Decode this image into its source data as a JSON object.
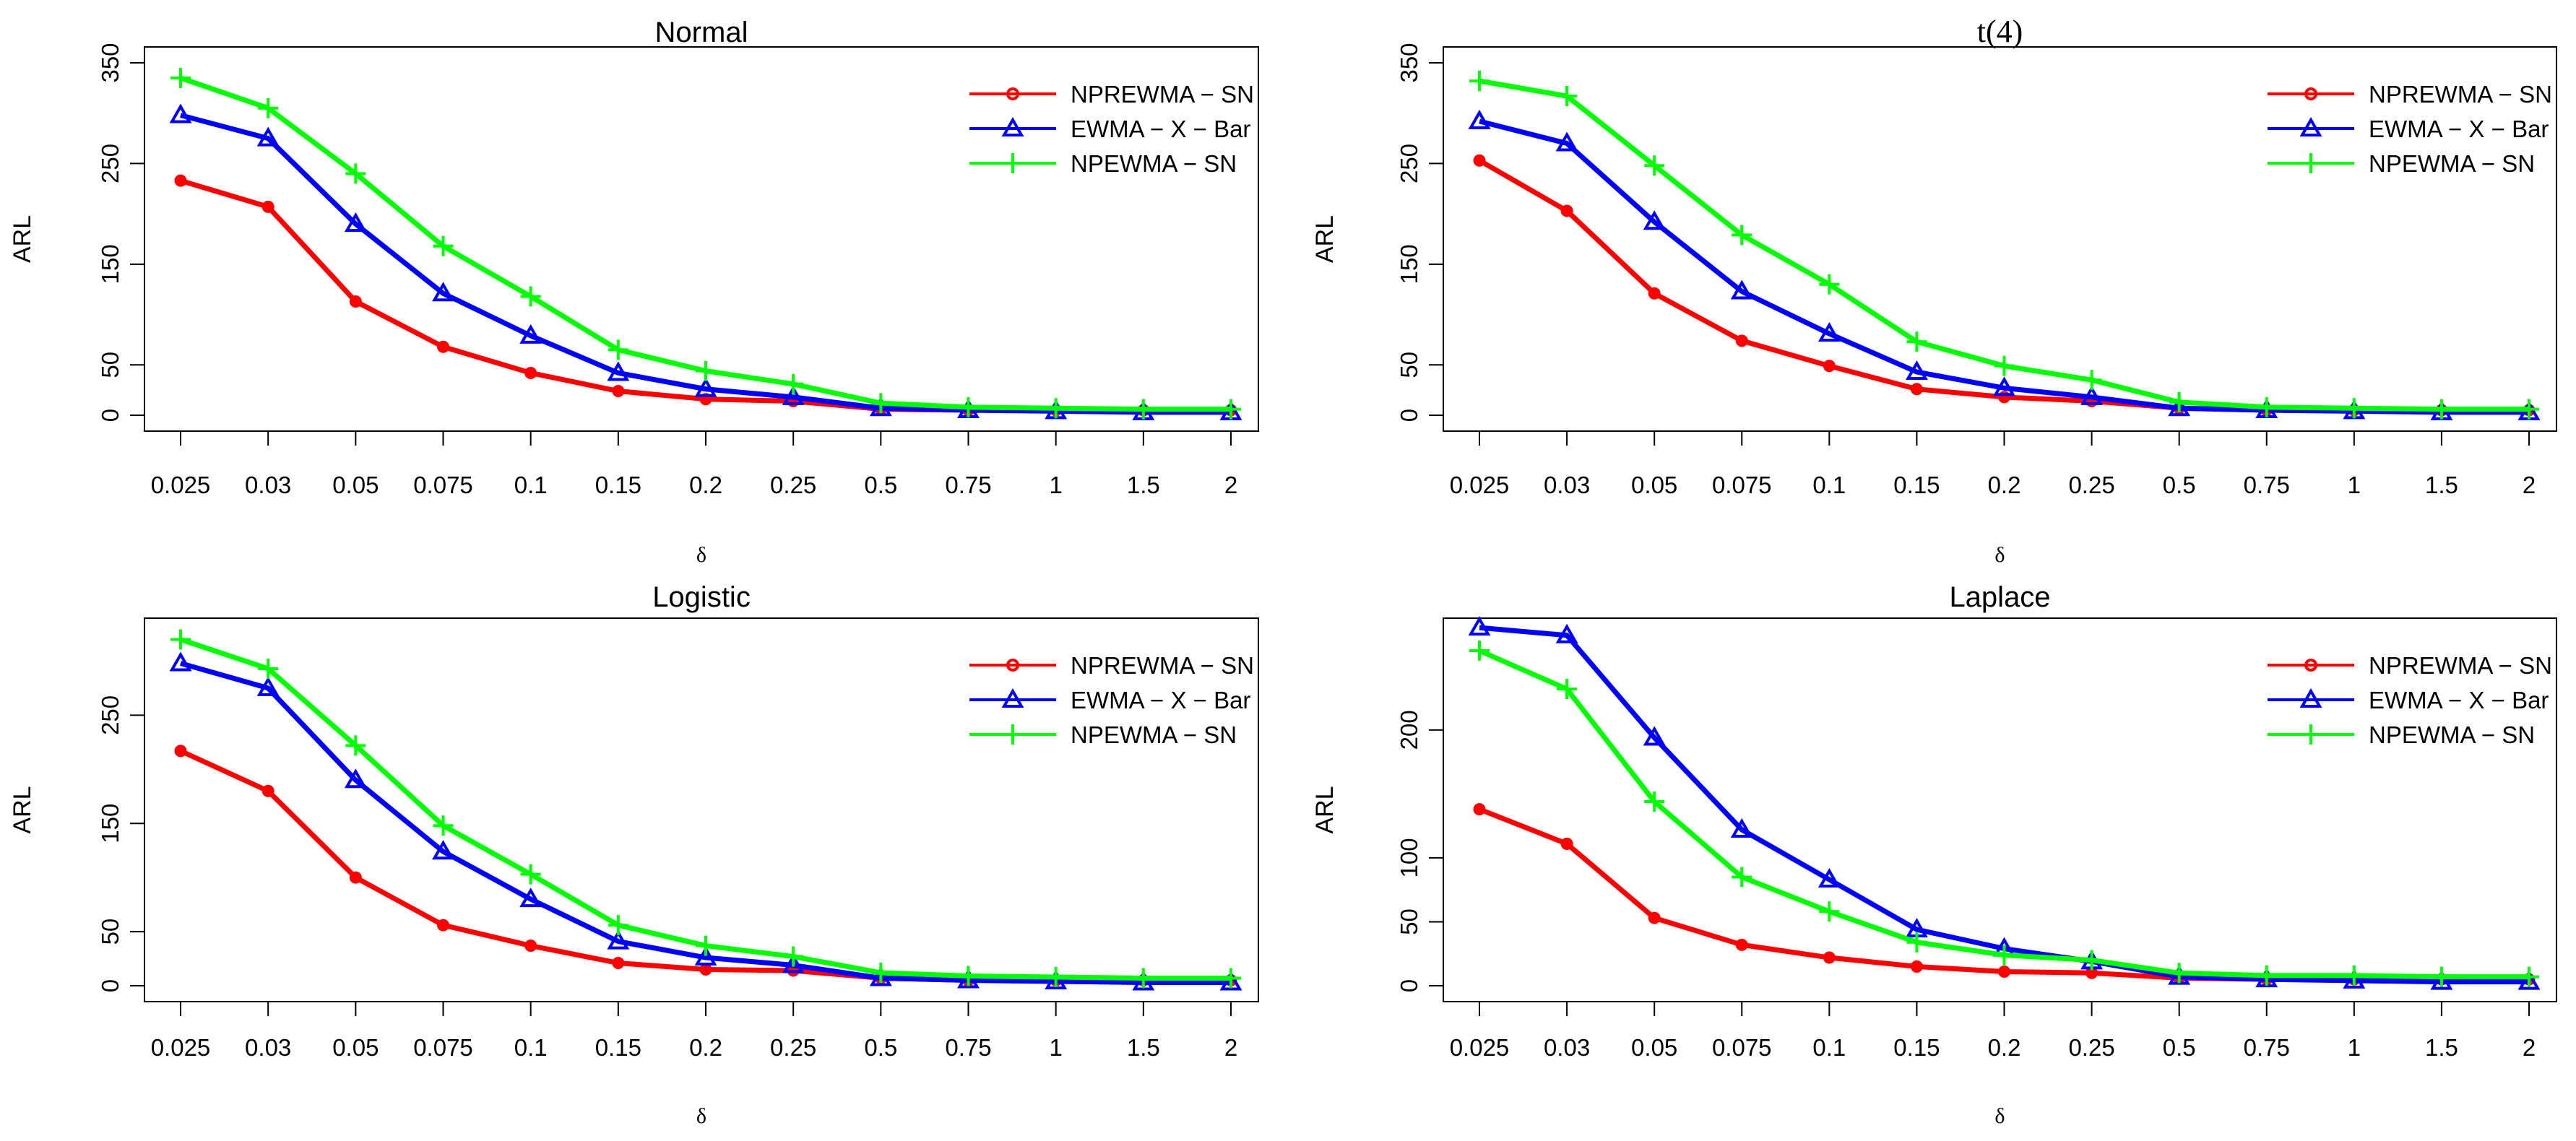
{
  "colors": {
    "NPREWMA-SN": "#ff0000",
    "EWMA-X-Bar": "#0000ff",
    "NPEWMA-SN": "#00ff00"
  },
  "chart_data": [
    {
      "type": "line",
      "title": "Normal",
      "xlabel": "δ",
      "ylabel": "ARL",
      "categories": [
        "0.025",
        "0.03",
        "0.05",
        "0.075",
        "0.1",
        "0.15",
        "0.2",
        "0.25",
        "0.5",
        "0.75",
        "1",
        "1.5",
        "2"
      ],
      "yticks": [
        0,
        50,
        150,
        250,
        350
      ],
      "ylim": [
        0,
        350
      ],
      "legend_position": "top-right",
      "series": [
        {
          "name": "NPREWMA − SN",
          "key": "NPREWMA-SN",
          "marker": "circle",
          "values": [
            233,
            207,
            113,
            68,
            42,
            24,
            16,
            14,
            6,
            5,
            5,
            5,
            5
          ]
        },
        {
          "name": "EWMA − X − Bar",
          "key": "EWMA-X-Bar",
          "marker": "triangle",
          "values": [
            298,
            275,
            190,
            121,
            79,
            42,
            26,
            18,
            7,
            5,
            4,
            3,
            3
          ]
        },
        {
          "name": "NPEWMA − SN",
          "key": "NPEWMA-SN",
          "marker": "plus",
          "values": [
            335,
            305,
            240,
            168,
            118,
            65,
            44,
            31,
            12,
            8,
            7,
            6,
            6
          ]
        }
      ]
    },
    {
      "type": "line",
      "title": "t(4)",
      "xlabel": "δ",
      "ylabel": "ARL",
      "categories": [
        "0.025",
        "0.03",
        "0.05",
        "0.075",
        "0.1",
        "0.15",
        "0.2",
        "0.25",
        "0.5",
        "0.75",
        "1",
        "1.5",
        "2"
      ],
      "yticks": [
        0,
        50,
        150,
        250,
        350
      ],
      "ylim": [
        0,
        350
      ],
      "legend_position": "top-right",
      "series": [
        {
          "name": "NPREWMA − SN",
          "key": "NPREWMA-SN",
          "marker": "circle",
          "values": [
            253,
            203,
            121,
            74,
            49,
            26,
            18,
            14,
            7,
            5,
            5,
            5,
            5
          ]
        },
        {
          "name": "EWMA − X − Bar",
          "key": "EWMA-X-Bar",
          "marker": "triangle",
          "values": [
            292,
            270,
            192,
            123,
            81,
            43,
            27,
            18,
            7,
            5,
            4,
            3,
            3
          ]
        },
        {
          "name": "NPEWMA − SN",
          "key": "NPEWMA-SN",
          "marker": "plus",
          "values": [
            332,
            317,
            248,
            179,
            130,
            73,
            49,
            35,
            13,
            8,
            7,
            6,
            6
          ]
        }
      ]
    },
    {
      "type": "line",
      "title": "Logistic",
      "xlabel": "δ",
      "ylabel": "ARL",
      "categories": [
        "0.025",
        "0.03",
        "0.05",
        "0.075",
        "0.1",
        "0.15",
        "0.2",
        "0.25",
        "0.5",
        "0.75",
        "1",
        "1.5",
        "2"
      ],
      "yticks": [
        0,
        50,
        150,
        250
      ],
      "ylim": [
        0,
        325
      ],
      "legend_position": "top-right",
      "series": [
        {
          "name": "NPREWMA − SN",
          "key": "NPREWMA-SN",
          "marker": "circle",
          "values": [
            217,
            180,
            100,
            56,
            37,
            21,
            15,
            14,
            7,
            5,
            5,
            5,
            5
          ]
        },
        {
          "name": "EWMA − X − Bar",
          "key": "EWMA-X-Bar",
          "marker": "triangle",
          "values": [
            298,
            275,
            190,
            124,
            80,
            41,
            26,
            19,
            7,
            5,
            4,
            3,
            3
          ]
        },
        {
          "name": "NPEWMA − SN",
          "key": "NPEWMA-SN",
          "marker": "plus",
          "values": [
            320,
            293,
            222,
            148,
            103,
            56,
            37,
            27,
            12,
            9,
            8,
            7,
            7
          ]
        }
      ]
    },
    {
      "type": "line",
      "title": "Laplace",
      "xlabel": "δ",
      "ylabel": "ARL",
      "categories": [
        "0.025",
        "0.03",
        "0.05",
        "0.075",
        "0.1",
        "0.15",
        "0.2",
        "0.25",
        "0.5",
        "0.75",
        "1",
        "1.5",
        "2"
      ],
      "yticks": [
        0,
        50,
        100,
        200
      ],
      "ylim": [
        0,
        275
      ],
      "legend_position": "top-right",
      "series": [
        {
          "name": "NPREWMA − SN",
          "key": "NPREWMA-SN",
          "marker": "circle",
          "values": [
            138,
            111,
            53,
            32,
            22,
            15,
            11,
            10,
            6,
            5,
            5,
            5,
            5
          ]
        },
        {
          "name": "EWMA − X − Bar",
          "key": "EWMA-X-Bar",
          "marker": "triangle",
          "values": [
            280,
            274,
            194,
            122,
            83,
            44,
            29,
            19,
            7,
            5,
            4,
            3,
            3
          ]
        },
        {
          "name": "NPEWMA − SN",
          "key": "NPEWMA-SN",
          "marker": "plus",
          "values": [
            262,
            232,
            144,
            85,
            58,
            34,
            24,
            20,
            10,
            8,
            8,
            7,
            7
          ]
        }
      ]
    }
  ]
}
